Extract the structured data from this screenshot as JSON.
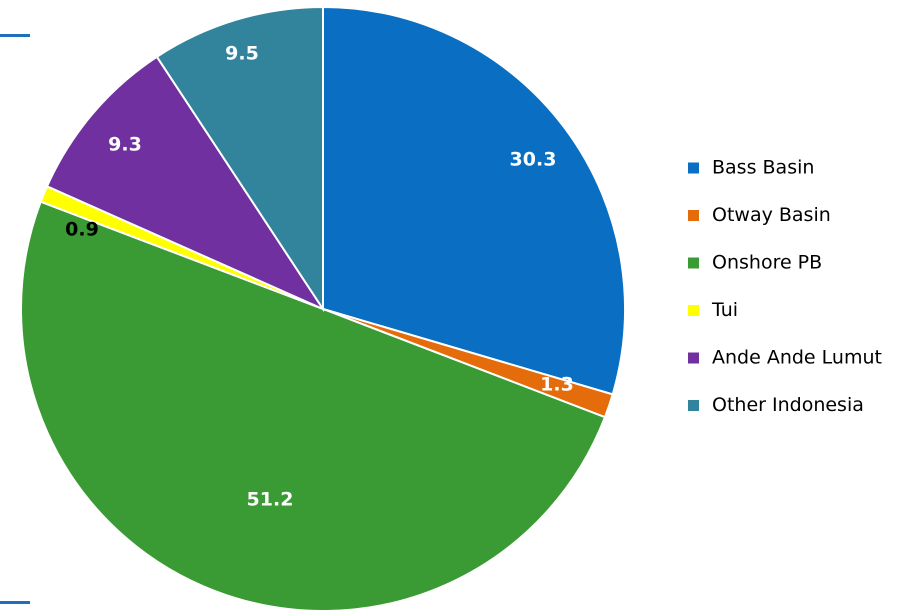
{
  "chart_data": {
    "type": "pie",
    "title": "",
    "start_angle_deg": 0,
    "direction": "clockwise",
    "categories": [
      "Bass Basin",
      "Otway Basin",
      "Onshore PB",
      "Tui",
      "Ande Ande Lumut",
      "Other Indonesia"
    ],
    "values": [
      30.3,
      1.3,
      51.2,
      0.9,
      9.3,
      9.5
    ],
    "value_labels": [
      "30.3",
      "1.3",
      "51.2",
      "0.9",
      "9.3",
      "9.5"
    ],
    "colors": [
      "#0a6fc2",
      "#e46c0a",
      "#3a9a34",
      "#ffff00",
      "#7030a0",
      "#31849b"
    ],
    "label_colors": [
      "#ffffff",
      "#ffffff",
      "#ffffff",
      "#000000",
      "#ffffff",
      "#ffffff"
    ],
    "legend": {
      "position": "right",
      "entries": [
        "Bass Basin",
        "Otway Basin",
        "Onshore PB",
        "Tui",
        "Ande Ande Lumut",
        "Other Indonesia"
      ]
    }
  }
}
